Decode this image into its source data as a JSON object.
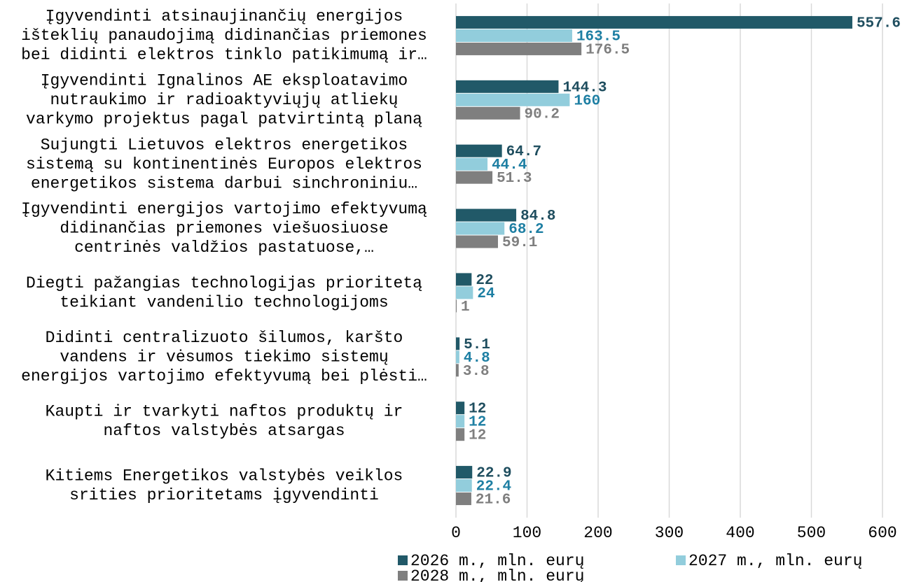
{
  "chart_data": {
    "type": "bar",
    "orientation": "horizontal",
    "categories": [
      [
        "Įgyvendinti atsinaujinančių energijos",
        "išteklių panaudojimą didinančias priemones",
        "bei didinti elektros tinklo patikimumą ir…"
      ],
      [
        "Įgyvendinti Ignalinos AE eksploatavimo",
        "nutraukimo ir radioaktyviųjų atliekų",
        "varkymo projektus pagal patvirtintą planą"
      ],
      [
        "Sujungti Lietuvos elektros energetikos",
        "sistemą su kontinentinės Europos elektros",
        "energetikos sistema  darbui sinchroniniu…"
      ],
      [
        "Įgyvendinti energijos vartojimo efektyvumą",
        "didinančias priemones viešuosiuose",
        "centrinės valdžios pastatuose,…"
      ],
      [
        "Diegti pažangias technologijas prioritetą",
        "teikiant vandenilio technologijoms"
      ],
      [
        "Didinti centralizuoto šilumos, karšto",
        "vandens ir vėsumos tiekimo sistemų",
        "energijos vartojimo efektyvumą bei plėsti…"
      ],
      [
        "Kaupti ir tvarkyti naftos produktų ir",
        "naftos valstybės atsargas"
      ],
      [
        "Kitiems Energetikos valstybės veiklos",
        "srities prioritetams įgyvendinti"
      ]
    ],
    "series": [
      {
        "name": "2026 m., mln. eurų",
        "color": "#215968",
        "label_color": "#1f4e5f",
        "values": [
          557.6,
          144.3,
          64.7,
          84.8,
          22,
          5.1,
          12,
          22.9
        ]
      },
      {
        "name": "2027 m., mln. eurų",
        "color": "#92cddc",
        "label_color": "#1e7fa3",
        "values": [
          163.5,
          160,
          44.4,
          68.2,
          24,
          4.8,
          12,
          22.4
        ]
      },
      {
        "name": "2028 m., mln. eurų",
        "color": "#7f7f7f",
        "label_color": "#7f7f7f",
        "values": [
          176.5,
          90.2,
          51.3,
          59.1,
          1,
          3.8,
          12,
          21.6
        ]
      }
    ],
    "xlim": [
      0,
      600
    ],
    "xticks": [
      0,
      100,
      200,
      300,
      400,
      500,
      600
    ],
    "grid": true,
    "legend": "bottom"
  }
}
